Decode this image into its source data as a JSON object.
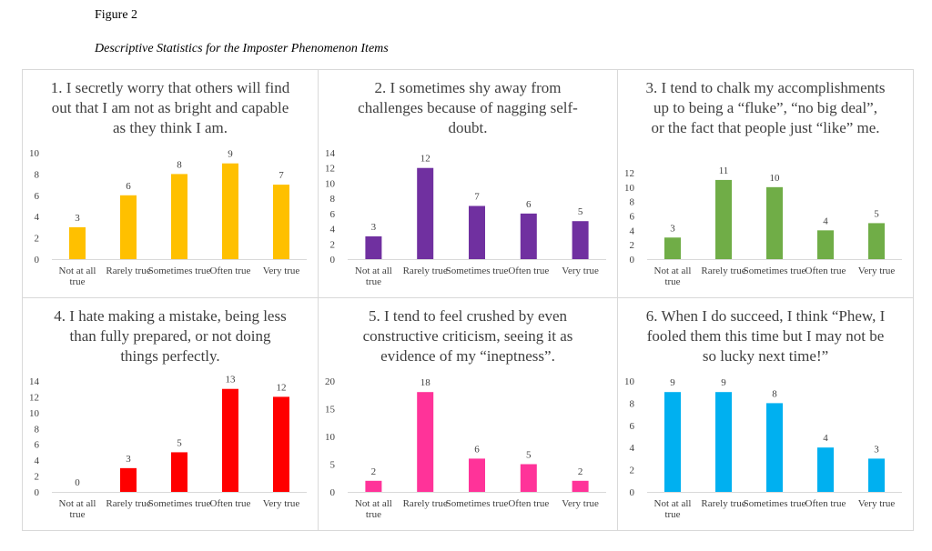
{
  "figure_label": "Figure 2",
  "figure_caption": "Descriptive Statistics for the Imposter Phenomenon Items",
  "chart_data": [
    {
      "type": "bar",
      "title": "1. I secretly worry that others will find out that I am not as bright and capable as they think I am.",
      "categories": [
        "Not at all true",
        "Rarely true",
        "Sometimes true",
        "Often true",
        "Very true"
      ],
      "values": [
        3,
        6,
        8,
        9,
        7
      ],
      "ylim": [
        0,
        10
      ],
      "yticks": [
        0,
        2,
        4,
        6,
        8,
        10
      ],
      "color": "#FFC000"
    },
    {
      "type": "bar",
      "title": "2. I sometimes shy away from challenges because of nagging self-doubt.",
      "categories": [
        "Not at all true",
        "Rarely true",
        "Sometimes true",
        "Often true",
        "Very true"
      ],
      "values": [
        3,
        12,
        7,
        6,
        5
      ],
      "ylim": [
        0,
        14
      ],
      "yticks": [
        0,
        2,
        4,
        6,
        8,
        10,
        12,
        14
      ],
      "color": "#7030A0"
    },
    {
      "type": "bar",
      "title": "3. I tend to chalk my accomplishments up to being a “fluke”, “no big deal”, or the fact that people just “like” me.",
      "categories": [
        "Not at all true",
        "Rarely true",
        "Sometimes true",
        "Often true",
        "Very true"
      ],
      "values": [
        3,
        11,
        10,
        4,
        5
      ],
      "ylim": [
        0,
        12
      ],
      "yticks": [
        0,
        2,
        4,
        6,
        8,
        10,
        12
      ],
      "color": "#70AD47"
    },
    {
      "type": "bar",
      "title": "4. I hate making a mistake, being less than fully prepared, or not doing things perfectly.",
      "categories": [
        "Not at all true",
        "Rarely true",
        "Sometimes true",
        "Often true",
        "Very true"
      ],
      "values": [
        0,
        3,
        5,
        13,
        12
      ],
      "ylim": [
        0,
        14
      ],
      "yticks": [
        0,
        2,
        4,
        6,
        8,
        10,
        12,
        14
      ],
      "color": "#FF0000"
    },
    {
      "type": "bar",
      "title": "5. I tend to feel crushed by even constructive criticism, seeing it as evidence of my “ineptness”.",
      "categories": [
        "Not at all true",
        "Rarely true",
        "Sometimes true",
        "Often true",
        "Very true"
      ],
      "values": [
        2,
        18,
        6,
        5,
        2
      ],
      "ylim": [
        0,
        20
      ],
      "yticks": [
        0,
        5,
        10,
        15,
        20
      ],
      "color": "#FF3399"
    },
    {
      "type": "bar",
      "title": "6. When I do succeed, I think “Phew, I fooled them this time but I may not be so lucky next time!”",
      "categories": [
        "Not at all true",
        "Rarely true",
        "Sometimes true",
        "Often true",
        "Very true"
      ],
      "values": [
        9,
        9,
        8,
        4,
        3
      ],
      "ylim": [
        0,
        10
      ],
      "yticks": [
        0,
        2,
        4,
        6,
        8,
        10
      ],
      "color": "#00B0F0"
    }
  ]
}
